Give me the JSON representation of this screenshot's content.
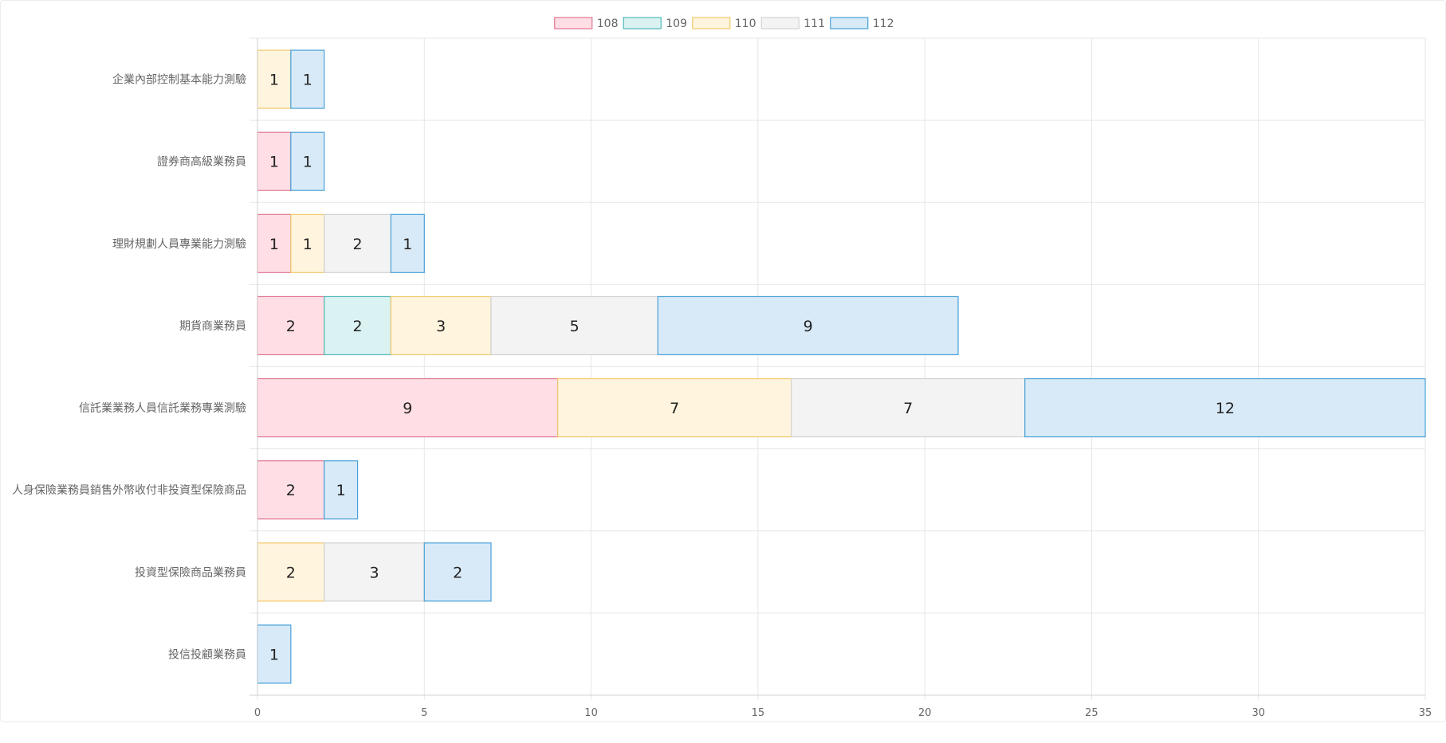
{
  "chart_data": {
    "type": "bar",
    "orientation": "horizontal",
    "stacked": true,
    "title": "",
    "xlabel": "",
    "ylabel": "",
    "xlim": [
      0,
      35
    ],
    "x_ticks": [
      0,
      5,
      10,
      15,
      20,
      25,
      30,
      35
    ],
    "grid": true,
    "legend_position": "top",
    "categories": [
      "企業內部控制基本能力測驗",
      "證券商高級業務員",
      "理財規劃人員專業能力測驗",
      "期貨商業務員",
      "信託業業務人員信託業務專業測驗",
      "人身保險業務員銷售外幣收付非投資型保險商品",
      "投資型保險商品業務員",
      "投信投顧業務員"
    ],
    "series": [
      {
        "name": "108",
        "fill": "#ffdfe5",
        "stroke": "#e07590",
        "values": [
          0,
          1,
          1,
          2,
          9,
          2,
          0,
          0
        ]
      },
      {
        "name": "109",
        "fill": "#dbf2f2",
        "stroke": "#4fb8b8",
        "values": [
          0,
          0,
          0,
          2,
          0,
          0,
          0,
          0
        ]
      },
      {
        "name": "110",
        "fill": "#fff4dd",
        "stroke": "#f2c96b",
        "values": [
          1,
          0,
          1,
          3,
          7,
          0,
          2,
          0
        ]
      },
      {
        "name": "111",
        "fill": "#f3f3f3",
        "stroke": "#d2d2d2",
        "values": [
          0,
          0,
          2,
          5,
          7,
          0,
          3,
          0
        ]
      },
      {
        "name": "112",
        "fill": "#d8eaf8",
        "stroke": "#49a0d8",
        "values": [
          1,
          1,
          1,
          9,
          12,
          1,
          2,
          1
        ]
      }
    ]
  }
}
